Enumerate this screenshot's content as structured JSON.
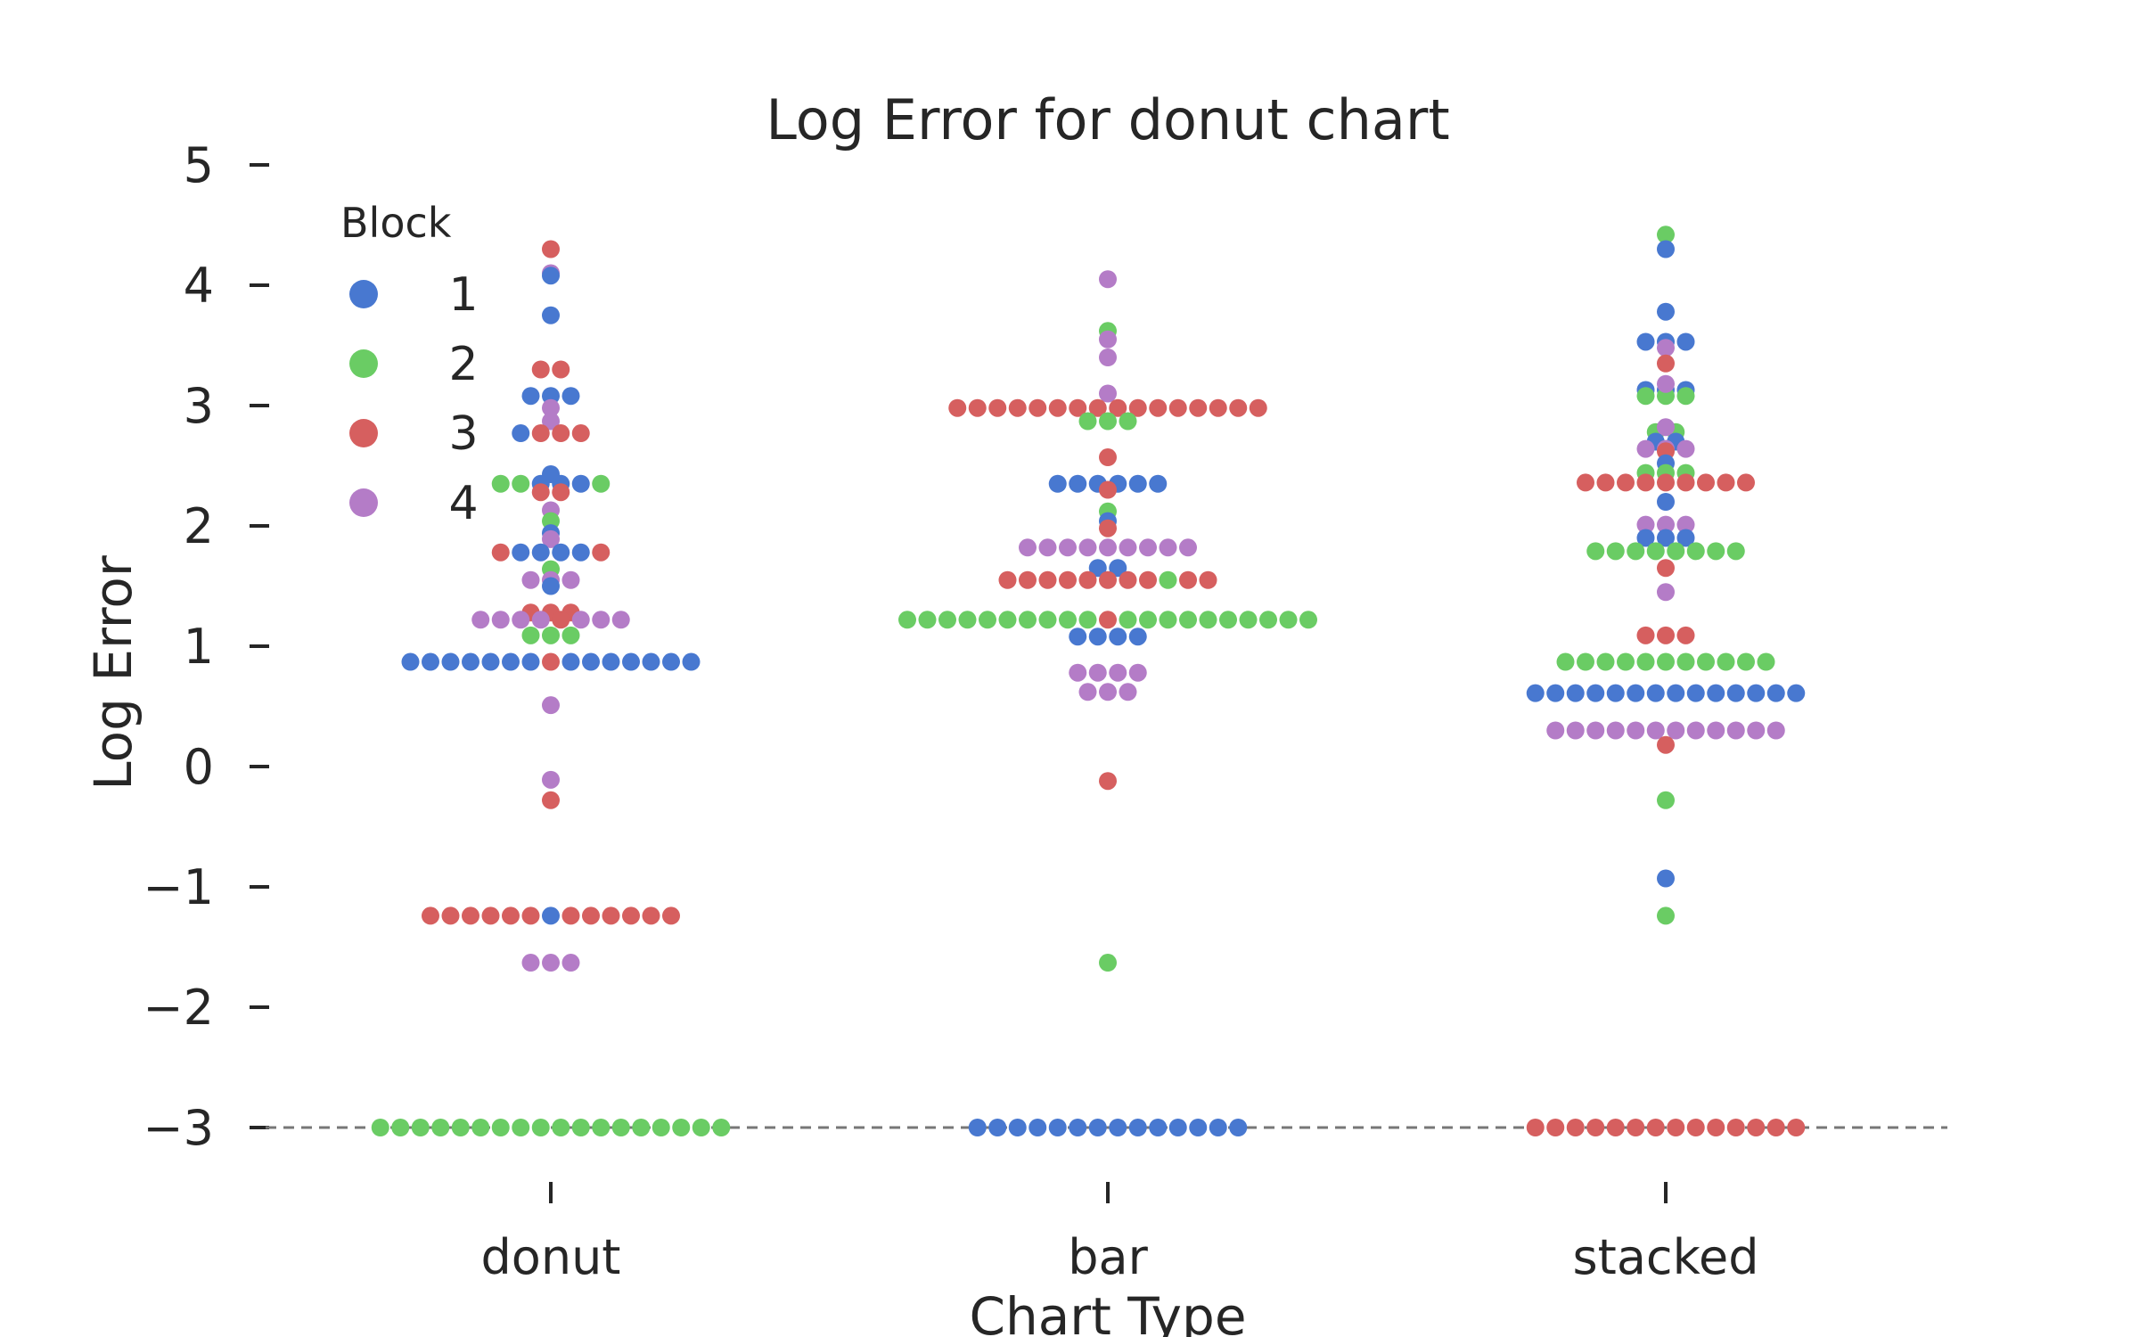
{
  "chart_data": {
    "type": "scatter",
    "subtype": "swarm",
    "title": "Log Error for donut chart",
    "xlabel": "Chart Type",
    "ylabel": "Log Error",
    "categories": [
      "donut",
      "bar",
      "stacked"
    ],
    "ylim": [
      -3.5,
      5.3
    ],
    "yticks": [
      -3,
      -2,
      -1,
      0,
      1,
      2,
      3,
      4,
      5
    ],
    "ytick_labels": [
      "−3",
      "−2",
      "−1",
      "0",
      "1",
      "2",
      "3",
      "4",
      "5"
    ],
    "grid": false,
    "reference_line": {
      "y": -3,
      "style": "dashed",
      "color": "#777777"
    },
    "legend": {
      "title": "Block",
      "placement": "top-left"
    },
    "series": [
      {
        "name": "1",
        "color": "#4878d0"
      },
      {
        "name": "2",
        "color": "#6acc64"
      },
      {
        "name": "3",
        "color": "#d65f5f"
      },
      {
        "name": "4",
        "color": "#b47cc7"
      }
    ],
    "points": [
      [
        0,
        4.3,
        3,
        1
      ],
      [
        0,
        4.1,
        4,
        1
      ],
      [
        0,
        4.08,
        1,
        1
      ],
      [
        0,
        3.75,
        1,
        1
      ],
      [
        0,
        3.3,
        3,
        2
      ],
      [
        0,
        3.08,
        1,
        3
      ],
      [
        0,
        2.98,
        4,
        1
      ],
      [
        0,
        2.87,
        4,
        1
      ],
      [
        0,
        2.77,
        1,
        1
      ],
      [
        0,
        2.77,
        3,
        3
      ],
      [
        0,
        2.43,
        1,
        1
      ],
      [
        0,
        2.35,
        2,
        2
      ],
      [
        0,
        2.35,
        1,
        3
      ],
      [
        0,
        2.35,
        2,
        1
      ],
      [
        0,
        2.28,
        3,
        2
      ],
      [
        0,
        2.13,
        4,
        1
      ],
      [
        0,
        2.04,
        2,
        1
      ],
      [
        0,
        1.94,
        1,
        1
      ],
      [
        0,
        1.89,
        4,
        1
      ],
      [
        0,
        1.78,
        3,
        1
      ],
      [
        0,
        1.78,
        1,
        4
      ],
      [
        0,
        1.78,
        3,
        1
      ],
      [
        0,
        1.64,
        2,
        1
      ],
      [
        0,
        1.55,
        4,
        2
      ],
      [
        0,
        1.5,
        1,
        1
      ],
      [
        0,
        1.55,
        4,
        1
      ],
      [
        0,
        1.28,
        3,
        1
      ],
      [
        0,
        1.28,
        3,
        1
      ],
      [
        0,
        1.28,
        3,
        1
      ],
      [
        0,
        1.22,
        4,
        4
      ],
      [
        0,
        1.22,
        3,
        1
      ],
      [
        0,
        1.22,
        4,
        3
      ],
      [
        0,
        1.09,
        2,
        3
      ],
      [
        0,
        0.87,
        1,
        7
      ],
      [
        0,
        0.87,
        3,
        1
      ],
      [
        0,
        0.87,
        1,
        7
      ],
      [
        0,
        0.51,
        4,
        1
      ],
      [
        0,
        -0.11,
        4,
        1
      ],
      [
        0,
        -0.28,
        3,
        1
      ],
      [
        0,
        -1.24,
        3,
        6
      ],
      [
        0,
        -1.24,
        1,
        1
      ],
      [
        0,
        -1.24,
        3,
        6
      ],
      [
        0,
        -1.63,
        4,
        3
      ],
      [
        0,
        -3.0,
        2,
        18
      ],
      [
        1,
        4.05,
        4,
        1
      ],
      [
        1,
        3.62,
        2,
        1
      ],
      [
        1,
        3.55,
        4,
        1
      ],
      [
        1,
        3.4,
        4,
        1
      ],
      [
        1,
        3.1,
        4,
        1
      ],
      [
        1,
        2.98,
        3,
        9
      ],
      [
        1,
        2.98,
        3,
        7
      ],
      [
        1,
        2.87,
        2,
        3
      ],
      [
        1,
        2.57,
        3,
        1
      ],
      [
        1,
        2.35,
        1,
        3
      ],
      [
        1,
        2.3,
        3,
        1
      ],
      [
        1,
        2.35,
        1,
        3
      ],
      [
        1,
        2.12,
        2,
        1
      ],
      [
        1,
        2.04,
        1,
        1
      ],
      [
        1,
        1.98,
        3,
        1
      ],
      [
        1,
        1.82,
        4,
        9
      ],
      [
        1,
        1.65,
        1,
        1
      ],
      [
        1,
        1.55,
        3,
        8
      ],
      [
        1,
        1.55,
        2,
        1
      ],
      [
        1,
        1.55,
        3,
        2
      ],
      [
        1,
        1.65,
        1,
        1
      ],
      [
        1,
        1.22,
        2,
        10
      ],
      [
        1,
        1.22,
        3,
        1
      ],
      [
        1,
        1.22,
        2,
        10
      ],
      [
        1,
        1.08,
        1,
        4
      ],
      [
        1,
        0.78,
        4,
        4
      ],
      [
        1,
        0.62,
        4,
        3
      ],
      [
        1,
        -0.12,
        3,
        1
      ],
      [
        1,
        -1.63,
        2,
        1
      ],
      [
        1,
        -3.0,
        1,
        14
      ],
      [
        2,
        4.42,
        2,
        1
      ],
      [
        2,
        4.3,
        1,
        1
      ],
      [
        2,
        3.78,
        1,
        1
      ],
      [
        2,
        3.53,
        1,
        2
      ],
      [
        2,
        3.48,
        4,
        1
      ],
      [
        2,
        3.53,
        1,
        1
      ],
      [
        2,
        3.35,
        3,
        1
      ],
      [
        2,
        3.13,
        1,
        2
      ],
      [
        2,
        3.08,
        2,
        3
      ],
      [
        2,
        3.13,
        1,
        1
      ],
      [
        2,
        3.18,
        4,
        1
      ],
      [
        2,
        2.78,
        2,
        2
      ],
      [
        2,
        2.82,
        4,
        1
      ],
      [
        2,
        2.7,
        1,
        1
      ],
      [
        2,
        2.64,
        4,
        1
      ],
      [
        2,
        2.62,
        3,
        1
      ],
      [
        2,
        2.64,
        4,
        2
      ],
      [
        2,
        2.7,
        1,
        1
      ],
      [
        2,
        2.52,
        1,
        1
      ],
      [
        2,
        2.44,
        2,
        1
      ],
      [
        2,
        2.36,
        3,
        9
      ],
      [
        2,
        2.44,
        2,
        2
      ],
      [
        2,
        2.2,
        1,
        1
      ],
      [
        2,
        2.01,
        4,
        3
      ],
      [
        2,
        1.9,
        1,
        1
      ],
      [
        2,
        1.79,
        2,
        8
      ],
      [
        2,
        1.9,
        1,
        2
      ],
      [
        2,
        1.65,
        3,
        1
      ],
      [
        2,
        1.45,
        4,
        1
      ],
      [
        2,
        1.09,
        3,
        3
      ],
      [
        2,
        0.87,
        2,
        11
      ],
      [
        2,
        0.61,
        1,
        14
      ],
      [
        2,
        0.3,
        4,
        12
      ],
      [
        2,
        0.18,
        3,
        1
      ],
      [
        2,
        -0.28,
        2,
        1
      ],
      [
        2,
        -0.93,
        1,
        1
      ],
      [
        2,
        -1.24,
        2,
        1
      ],
      [
        2,
        -3.0,
        3,
        14
      ]
    ]
  }
}
